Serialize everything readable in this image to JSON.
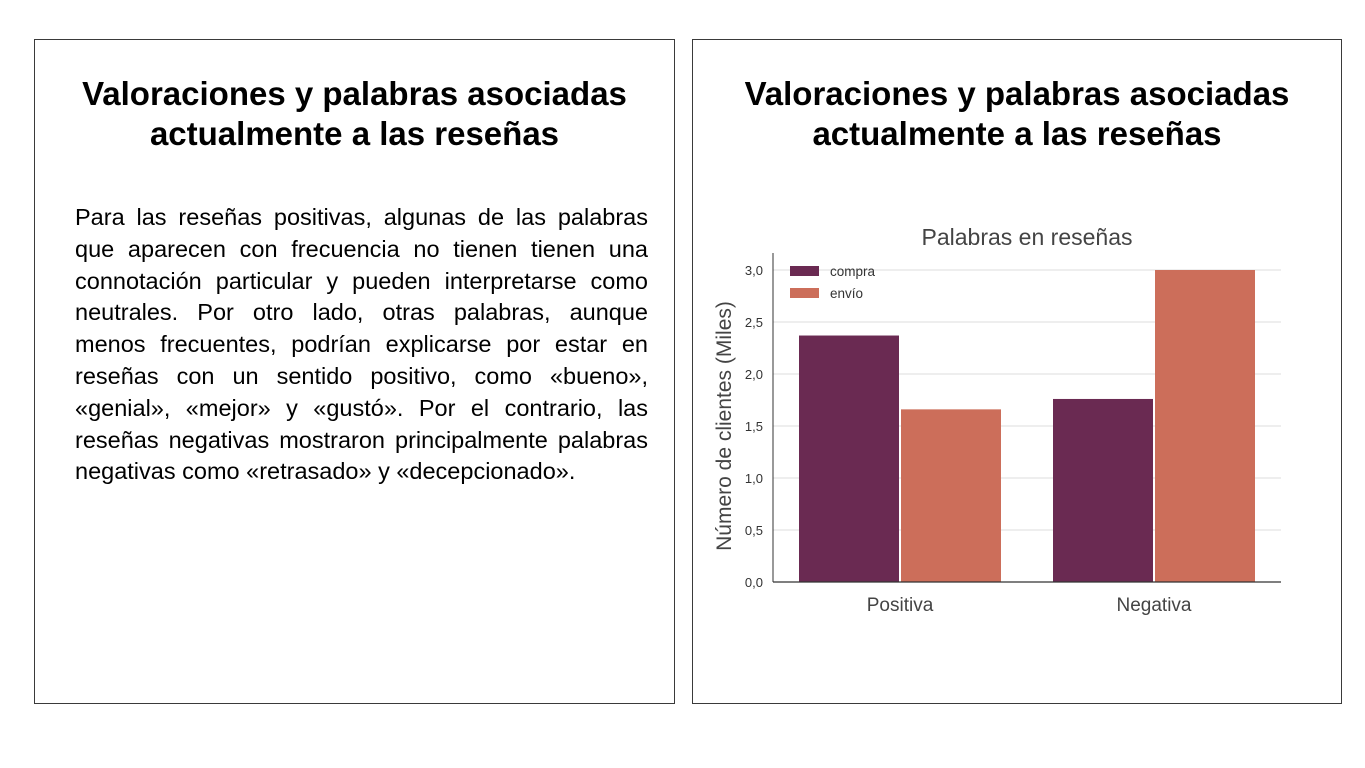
{
  "left_panel": {
    "title": "Valoraciones y palabras asociadas actualmente a las reseñas",
    "body": "Para las reseñas positivas, algunas de las palabras que aparecen con frecuencia no tienen tienen una connotación particular y pueden interpretarse como neutrales. Por otro lado, otras palabras, aunque menos frecuentes, podrían explicarse por estar en reseñas con un sentido positivo, como «bueno», «genial», «mejor» y «gustó». Por el contrario, las reseñas negativas mostraron principalmente palabras negativas como «retrasado» y «decepcionado»."
  },
  "right_panel": {
    "title": "Valoraciones y palabras asociadas actualmente a las reseñas"
  },
  "chart_data": {
    "type": "bar",
    "title": "Palabras en reseñas",
    "xlabel": "",
    "ylabel": "Número de clientes (Miles)",
    "categories": [
      "Positiva",
      "Negativa"
    ],
    "series": [
      {
        "name": "compra",
        "values": [
          2.37,
          1.76
        ],
        "color": "#6a2a52"
      },
      {
        "name": "envío",
        "values": [
          1.66,
          3.0
        ],
        "color": "#cc6e5a"
      }
    ],
    "ylim": [
      0,
      3.0
    ],
    "yticks": [
      "0,0",
      "0,5",
      "1,0",
      "1,5",
      "2,0",
      "2,5",
      "3,0"
    ],
    "grid": true,
    "legend": "top-left"
  }
}
